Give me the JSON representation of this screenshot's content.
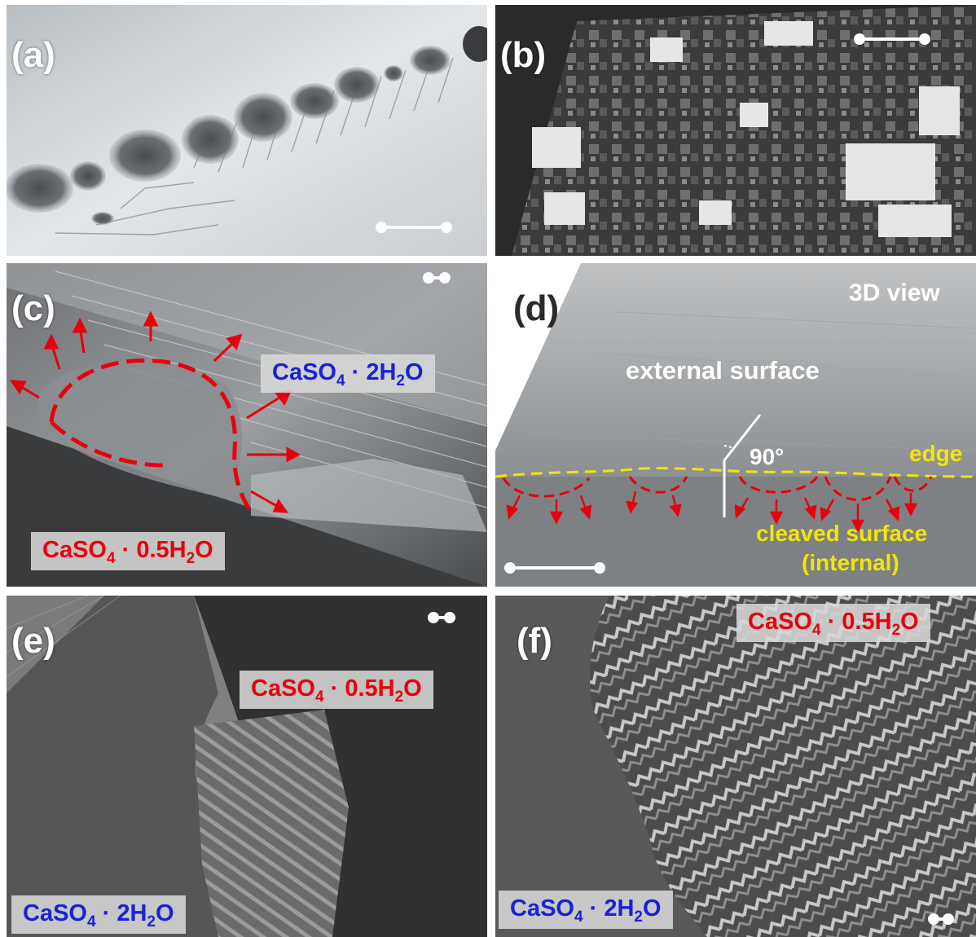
{
  "panels": {
    "a": {
      "label": "(a)"
    },
    "b": {
      "label": "(b)"
    },
    "c": {
      "label": "(c)",
      "top_tag": {
        "formula": "CaSO",
        "sub": "4",
        "mid": " · 2H",
        "sub2": "2",
        "end": "O"
      },
      "bottom_tag": {
        "formula": "CaSO",
        "sub": "4",
        "mid": " · 0.5H",
        "sub2": "2",
        "end": "O"
      }
    },
    "d": {
      "label": "(d)",
      "view": "3D view",
      "external": "external surface",
      "angle": "90°",
      "edge": "edge",
      "cleaved_line1": "cleaved surface",
      "cleaved_line2": "(internal)"
    },
    "e": {
      "label": "(e)",
      "top_tag": {
        "formula": "CaSO",
        "sub": "4",
        "mid": " · 0.5H",
        "sub2": "2",
        "end": "O"
      },
      "bottom_tag": {
        "formula": "CaSO",
        "sub": "4",
        "mid": " · 2H",
        "sub2": "2",
        "end": "O"
      }
    },
    "f": {
      "label": "(f)",
      "top_tag": {
        "formula": "CaSO",
        "sub": "4",
        "mid": " · 0.5H",
        "sub2": "2",
        "end": "O"
      },
      "bottom_tag": {
        "formula": "CaSO",
        "sub": "4",
        "mid": " · 2H",
        "sub2": "2",
        "end": "O"
      }
    }
  },
  "colors": {
    "red": "#e8000b",
    "blue": "#1a22d8",
    "yellow": "#f2e600"
  }
}
